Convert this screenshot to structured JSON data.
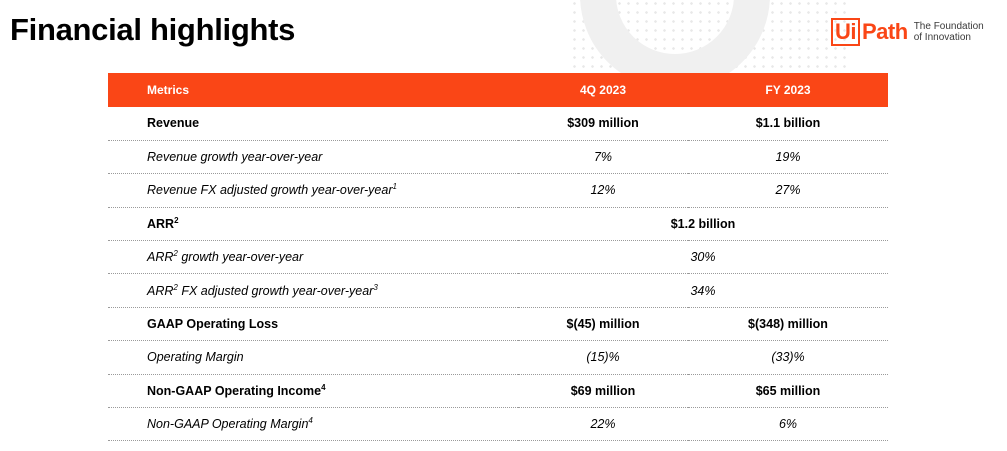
{
  "header": {
    "title": "Financial highlights"
  },
  "logo": {
    "brand_box": "Ui",
    "brand_rest": "Path",
    "tagline": "The Foundation of Innovation"
  },
  "table": {
    "columns": [
      "Metrics",
      "4Q 2023",
      "FY 2023"
    ],
    "rows": [
      {
        "label": "Revenue",
        "sup": "",
        "q4": "$309 million",
        "fy": "$1.1 billion",
        "style": "bold"
      },
      {
        "label": "Revenue growth year-over-year",
        "sup": "",
        "q4": "7%",
        "fy": "19%",
        "style": "italic"
      },
      {
        "label": "Revenue FX adjusted growth year-over-year",
        "sup": "1",
        "q4": "12%",
        "fy": "27%",
        "style": "italic"
      },
      {
        "label": "ARR",
        "sup": "2",
        "combined": "$1.2 billion",
        "style": "bold"
      },
      {
        "label_prefix": "ARR",
        "label_prefix_sup": "2",
        "label": " growth year-over-year",
        "sup": "",
        "combined": "30%",
        "style": "italic"
      },
      {
        "label_prefix": "ARR",
        "label_prefix_sup": "2",
        "label": " FX adjusted growth year-over-year",
        "sup": "3",
        "combined": "34%",
        "style": "italic"
      },
      {
        "label": "GAAP Operating Loss",
        "sup": "",
        "q4": "$(45) million",
        "fy": "$(348) million",
        "style": "bold"
      },
      {
        "label": "Operating Margin",
        "sup": "",
        "q4": "(15)%",
        "fy": "(33)%",
        "style": "italic"
      },
      {
        "label": "Non-GAAP Operating Income",
        "sup": "4",
        "q4": "$69 million",
        "fy": "$65 million",
        "style": "bold"
      },
      {
        "label": "Non-GAAP Operating Margin",
        "sup": "4",
        "q4": "22%",
        "fy": "6%",
        "style": "italic"
      }
    ]
  },
  "colors": {
    "accent": "#fa4616",
    "header_text": "#ffffff"
  }
}
